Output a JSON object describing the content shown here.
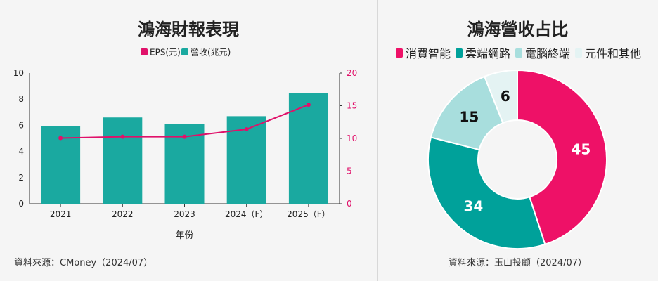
{
  "left_panel": {
    "title": "鴻海財報表現",
    "source": "資料來源：CMoney（2024/07）"
  },
  "right_panel": {
    "title": "鴻海營收占比",
    "source": "資料來源：玉山投顧（2024/07）"
  },
  "chart_data": [
    {
      "type": "bar",
      "title": "鴻海財報表現",
      "xlabel": "年份",
      "categories": [
        "2021",
        "2022",
        "2023",
        "2024（F）",
        "2025（F）"
      ],
      "series": [
        {
          "name": "營收(兆元)",
          "kind": "bar",
          "axis": "left",
          "color": "#1aa9a0",
          "values": [
            5.95,
            6.6,
            6.1,
            6.7,
            8.45
          ]
        },
        {
          "name": "EPS(元)",
          "kind": "line",
          "axis": "right",
          "color": "#e0116a",
          "values": [
            10.05,
            10.25,
            10.25,
            11.4,
            15.15
          ]
        }
      ],
      "y_left": {
        "ylim": [
          0,
          10
        ],
        "ticks": [
          0,
          2,
          4,
          6,
          8,
          10
        ]
      },
      "y_right": {
        "ylim": [
          0,
          20
        ],
        "ticks": [
          0,
          5,
          10,
          15,
          20
        ]
      },
      "legend": "top-center",
      "grid": false
    },
    {
      "type": "pie",
      "variant": "donut",
      "title": "鴻海營收占比",
      "legend": "top",
      "slices": [
        {
          "label": "消費智能",
          "value": 45,
          "color": "#ee1167",
          "text_color": "#ffffff"
        },
        {
          "label": "雲端網路",
          "value": 34,
          "color": "#00a19a",
          "text_color": "#ffffff"
        },
        {
          "label": "電腦終端",
          "value": 15,
          "color": "#a8dedd",
          "text_color": "#111111"
        },
        {
          "label": "元件和其他",
          "value": 6,
          "color": "#e4f3f3",
          "text_color": "#111111"
        }
      ]
    }
  ]
}
